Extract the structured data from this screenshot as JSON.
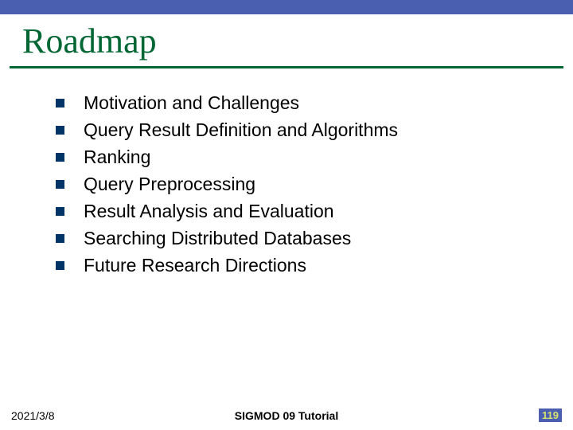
{
  "colors": {
    "top_bar": "#4a5fb0",
    "title": "#006633",
    "underline": "#006633",
    "bullet": "#003366",
    "page_bg": "#4a5fb0",
    "page_fg": "#d9e070"
  },
  "title": "Roadmap",
  "items": [
    "Motivation and Challenges",
    "Query Result Definition and Algorithms",
    "Ranking",
    "Query Preprocessing",
    "Result Analysis and Evaluation",
    "Searching Distributed Databases",
    "Future Research Directions"
  ],
  "footer": {
    "date": "2021/3/8",
    "center": "SIGMOD 09 Tutorial",
    "page": "119"
  }
}
